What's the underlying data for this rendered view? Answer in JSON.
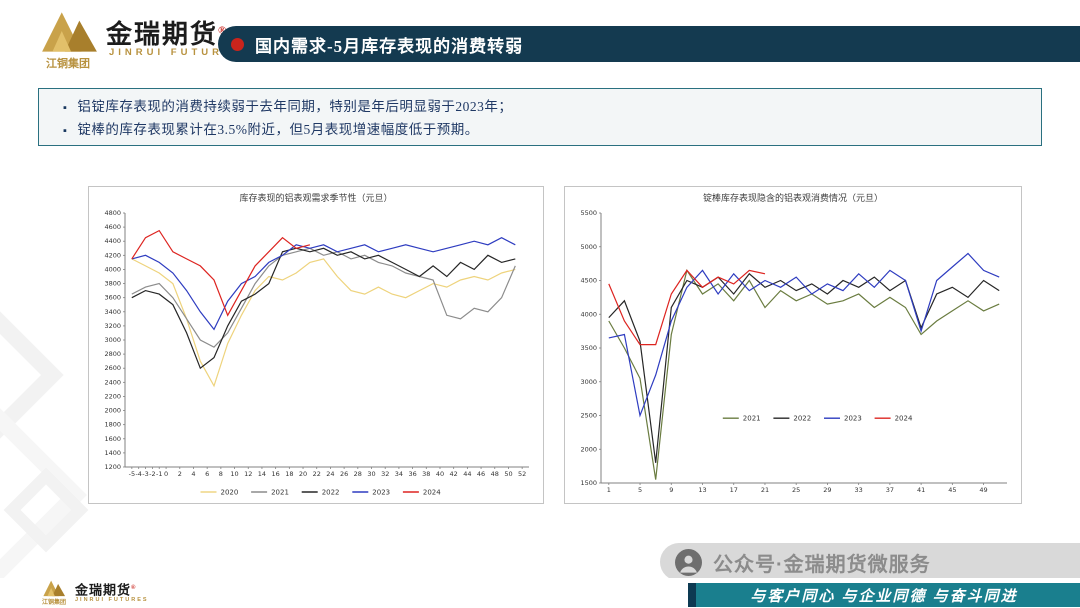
{
  "logo": {
    "group": "江铜集团",
    "brand": "金瑞期货",
    "reg": "®",
    "brand_en": "JINRUI FUTURES"
  },
  "header": {
    "title": "国内需求-5月库存表现的消费转弱"
  },
  "summary": {
    "bullets": [
      "铝锭库存表现的消费持续弱于去年同期，特别是年后明显弱于2023年；",
      "锭棒的库存表现累计在3.5%附近，但5月表现增速幅度低于预期。"
    ]
  },
  "chart_data": [
    {
      "type": "line",
      "title": "库存表现的铝表观需求季节性（元旦）",
      "xlabel": "",
      "ylabel": "",
      "xlim": [
        -6,
        53
      ],
      "ylim": [
        1200,
        4800
      ],
      "ytick_step": 200,
      "xticks": [
        -5,
        -4,
        -3,
        -2,
        -1,
        0,
        2,
        4,
        6,
        8,
        10,
        12,
        14,
        16,
        18,
        20,
        22,
        24,
        26,
        28,
        30,
        32,
        34,
        36,
        38,
        40,
        42,
        44,
        46,
        48,
        50,
        52
      ],
      "grid": false,
      "legend_position": "bottom",
      "series": [
        {
          "name": "2020",
          "color": "#eed37c",
          "x": [
            -5,
            -3,
            -1,
            1,
            3,
            5,
            7,
            9,
            11,
            13,
            15,
            17,
            19,
            21,
            23,
            25,
            27,
            29,
            31,
            33,
            35,
            37,
            39,
            41,
            43,
            45,
            47,
            49,
            51
          ],
          "values": [
            4150,
            4050,
            3950,
            3800,
            3300,
            2700,
            2350,
            2950,
            3350,
            3700,
            3900,
            3850,
            3950,
            4100,
            4150,
            3900,
            3700,
            3650,
            3750,
            3650,
            3600,
            3700,
            3800,
            3750,
            3850,
            3900,
            3850,
            3950,
            4000
          ]
        },
        {
          "name": "2021",
          "color": "#8c8c8c",
          "x": [
            -5,
            -3,
            -1,
            1,
            3,
            5,
            7,
            9,
            11,
            13,
            15,
            17,
            19,
            21,
            23,
            25,
            27,
            29,
            31,
            33,
            35,
            37,
            39,
            41,
            43,
            45,
            47,
            49,
            51
          ],
          "values": [
            3650,
            3750,
            3800,
            3600,
            3300,
            3000,
            2900,
            3100,
            3450,
            3800,
            4050,
            4200,
            4250,
            4300,
            4200,
            4250,
            4150,
            4200,
            4100,
            4050,
            3950,
            3900,
            3850,
            3350,
            3300,
            3450,
            3400,
            3600,
            4050
          ]
        },
        {
          "name": "2022",
          "color": "#262626",
          "x": [
            -5,
            -3,
            -1,
            1,
            3,
            5,
            7,
            9,
            11,
            13,
            15,
            17,
            19,
            21,
            23,
            25,
            27,
            29,
            31,
            33,
            35,
            37,
            39,
            41,
            43,
            45,
            47,
            49,
            51
          ],
          "values": [
            3600,
            3700,
            3650,
            3500,
            3100,
            2600,
            2750,
            3200,
            3550,
            3650,
            3800,
            4250,
            4300,
            4250,
            4300,
            4200,
            4250,
            4150,
            4200,
            4100,
            4000,
            3900,
            4050,
            3900,
            4100,
            4000,
            4200,
            4100,
            4150
          ]
        },
        {
          "name": "2023",
          "color": "#2e3cc0",
          "x": [
            -5,
            -3,
            -1,
            1,
            3,
            5,
            7,
            9,
            11,
            13,
            15,
            17,
            19,
            21,
            23,
            25,
            27,
            29,
            31,
            33,
            35,
            37,
            39,
            41,
            43,
            45,
            47,
            49,
            51
          ],
          "values": [
            4150,
            4200,
            4100,
            3950,
            3700,
            3400,
            3150,
            3550,
            3800,
            3900,
            4100,
            4200,
            4350,
            4300,
            4350,
            4250,
            4300,
            4350,
            4250,
            4300,
            4350,
            4300,
            4250,
            4300,
            4350,
            4400,
            4350,
            4450,
            4350
          ]
        },
        {
          "name": "2024",
          "color": "#dd2420",
          "x": [
            -5,
            -3,
            -1,
            1,
            3,
            5,
            7,
            9,
            11,
            13,
            15,
            17,
            19,
            21
          ],
          "values": [
            4150,
            4450,
            4550,
            4250,
            4150,
            4050,
            3850,
            3350,
            3700,
            4050,
            4250,
            4450,
            4300,
            4350
          ]
        }
      ]
    },
    {
      "type": "line",
      "title": "锭棒库存表现隐含的铝表观消费情况（元旦）",
      "xlabel": "",
      "ylabel": "",
      "xlim": [
        0,
        52
      ],
      "ylim": [
        1500,
        5500
      ],
      "ytick_step": 500,
      "xticks": [
        1,
        5,
        9,
        13,
        17,
        21,
        25,
        29,
        33,
        37,
        41,
        45,
        49
      ],
      "grid": false,
      "legend_position": "inside",
      "series": [
        {
          "name": "2021",
          "color": "#6a7c40",
          "x": [
            1,
            3,
            5,
            7,
            9,
            11,
            13,
            15,
            17,
            19,
            21,
            23,
            25,
            27,
            29,
            31,
            33,
            35,
            37,
            39,
            41,
            43,
            45,
            47,
            49,
            51
          ],
          "values": [
            3900,
            3500,
            3050,
            1550,
            3700,
            4650,
            4300,
            4450,
            4200,
            4500,
            4100,
            4350,
            4200,
            4300,
            4150,
            4200,
            4300,
            4100,
            4250,
            4100,
            3700,
            3900,
            4050,
            4200,
            4050,
            4150
          ]
        },
        {
          "name": "2022",
          "color": "#262626",
          "x": [
            1,
            3,
            5,
            7,
            9,
            11,
            13,
            15,
            17,
            19,
            21,
            23,
            25,
            27,
            29,
            31,
            33,
            35,
            37,
            39,
            41,
            43,
            45,
            47,
            49,
            51
          ],
          "values": [
            3950,
            4200,
            3600,
            1800,
            4100,
            4500,
            4400,
            4550,
            4300,
            4600,
            4400,
            4500,
            4350,
            4450,
            4300,
            4500,
            4400,
            4550,
            4350,
            4500,
            3800,
            4300,
            4400,
            4250,
            4500,
            4350
          ]
        },
        {
          "name": "2023",
          "color": "#2e3cc0",
          "x": [
            1,
            3,
            5,
            7,
            9,
            11,
            13,
            15,
            17,
            19,
            21,
            23,
            25,
            27,
            29,
            31,
            33,
            35,
            37,
            39,
            41,
            43,
            45,
            47,
            49,
            51
          ],
          "values": [
            3650,
            3700,
            2500,
            3100,
            3900,
            4400,
            4650,
            4300,
            4600,
            4350,
            4500,
            4400,
            4550,
            4300,
            4450,
            4350,
            4600,
            4400,
            4650,
            4500,
            3750,
            4500,
            4700,
            4900,
            4650,
            4550
          ]
        },
        {
          "name": "2024",
          "color": "#dd2420",
          "x": [
            1,
            3,
            5,
            7,
            9,
            11,
            13,
            15,
            17,
            19,
            21
          ],
          "values": [
            4450,
            3900,
            3550,
            3550,
            4300,
            4650,
            4400,
            4550,
            4450,
            4650,
            4600
          ]
        }
      ]
    }
  ],
  "watermark": {
    "text": "公众号·金瑞期货微服务"
  },
  "footer": {
    "slogan": "与客户同心 与企业同德 与奋斗同进"
  },
  "colors": {
    "banner_bg": "#143a50",
    "accent_red": "#c9241c",
    "teal_bar": "#1a7f8e",
    "gold": "#b8923f",
    "summary_border": "#2a7080",
    "summary_text": "#1f3864",
    "watermark_bg": "#d9d9d9"
  }
}
